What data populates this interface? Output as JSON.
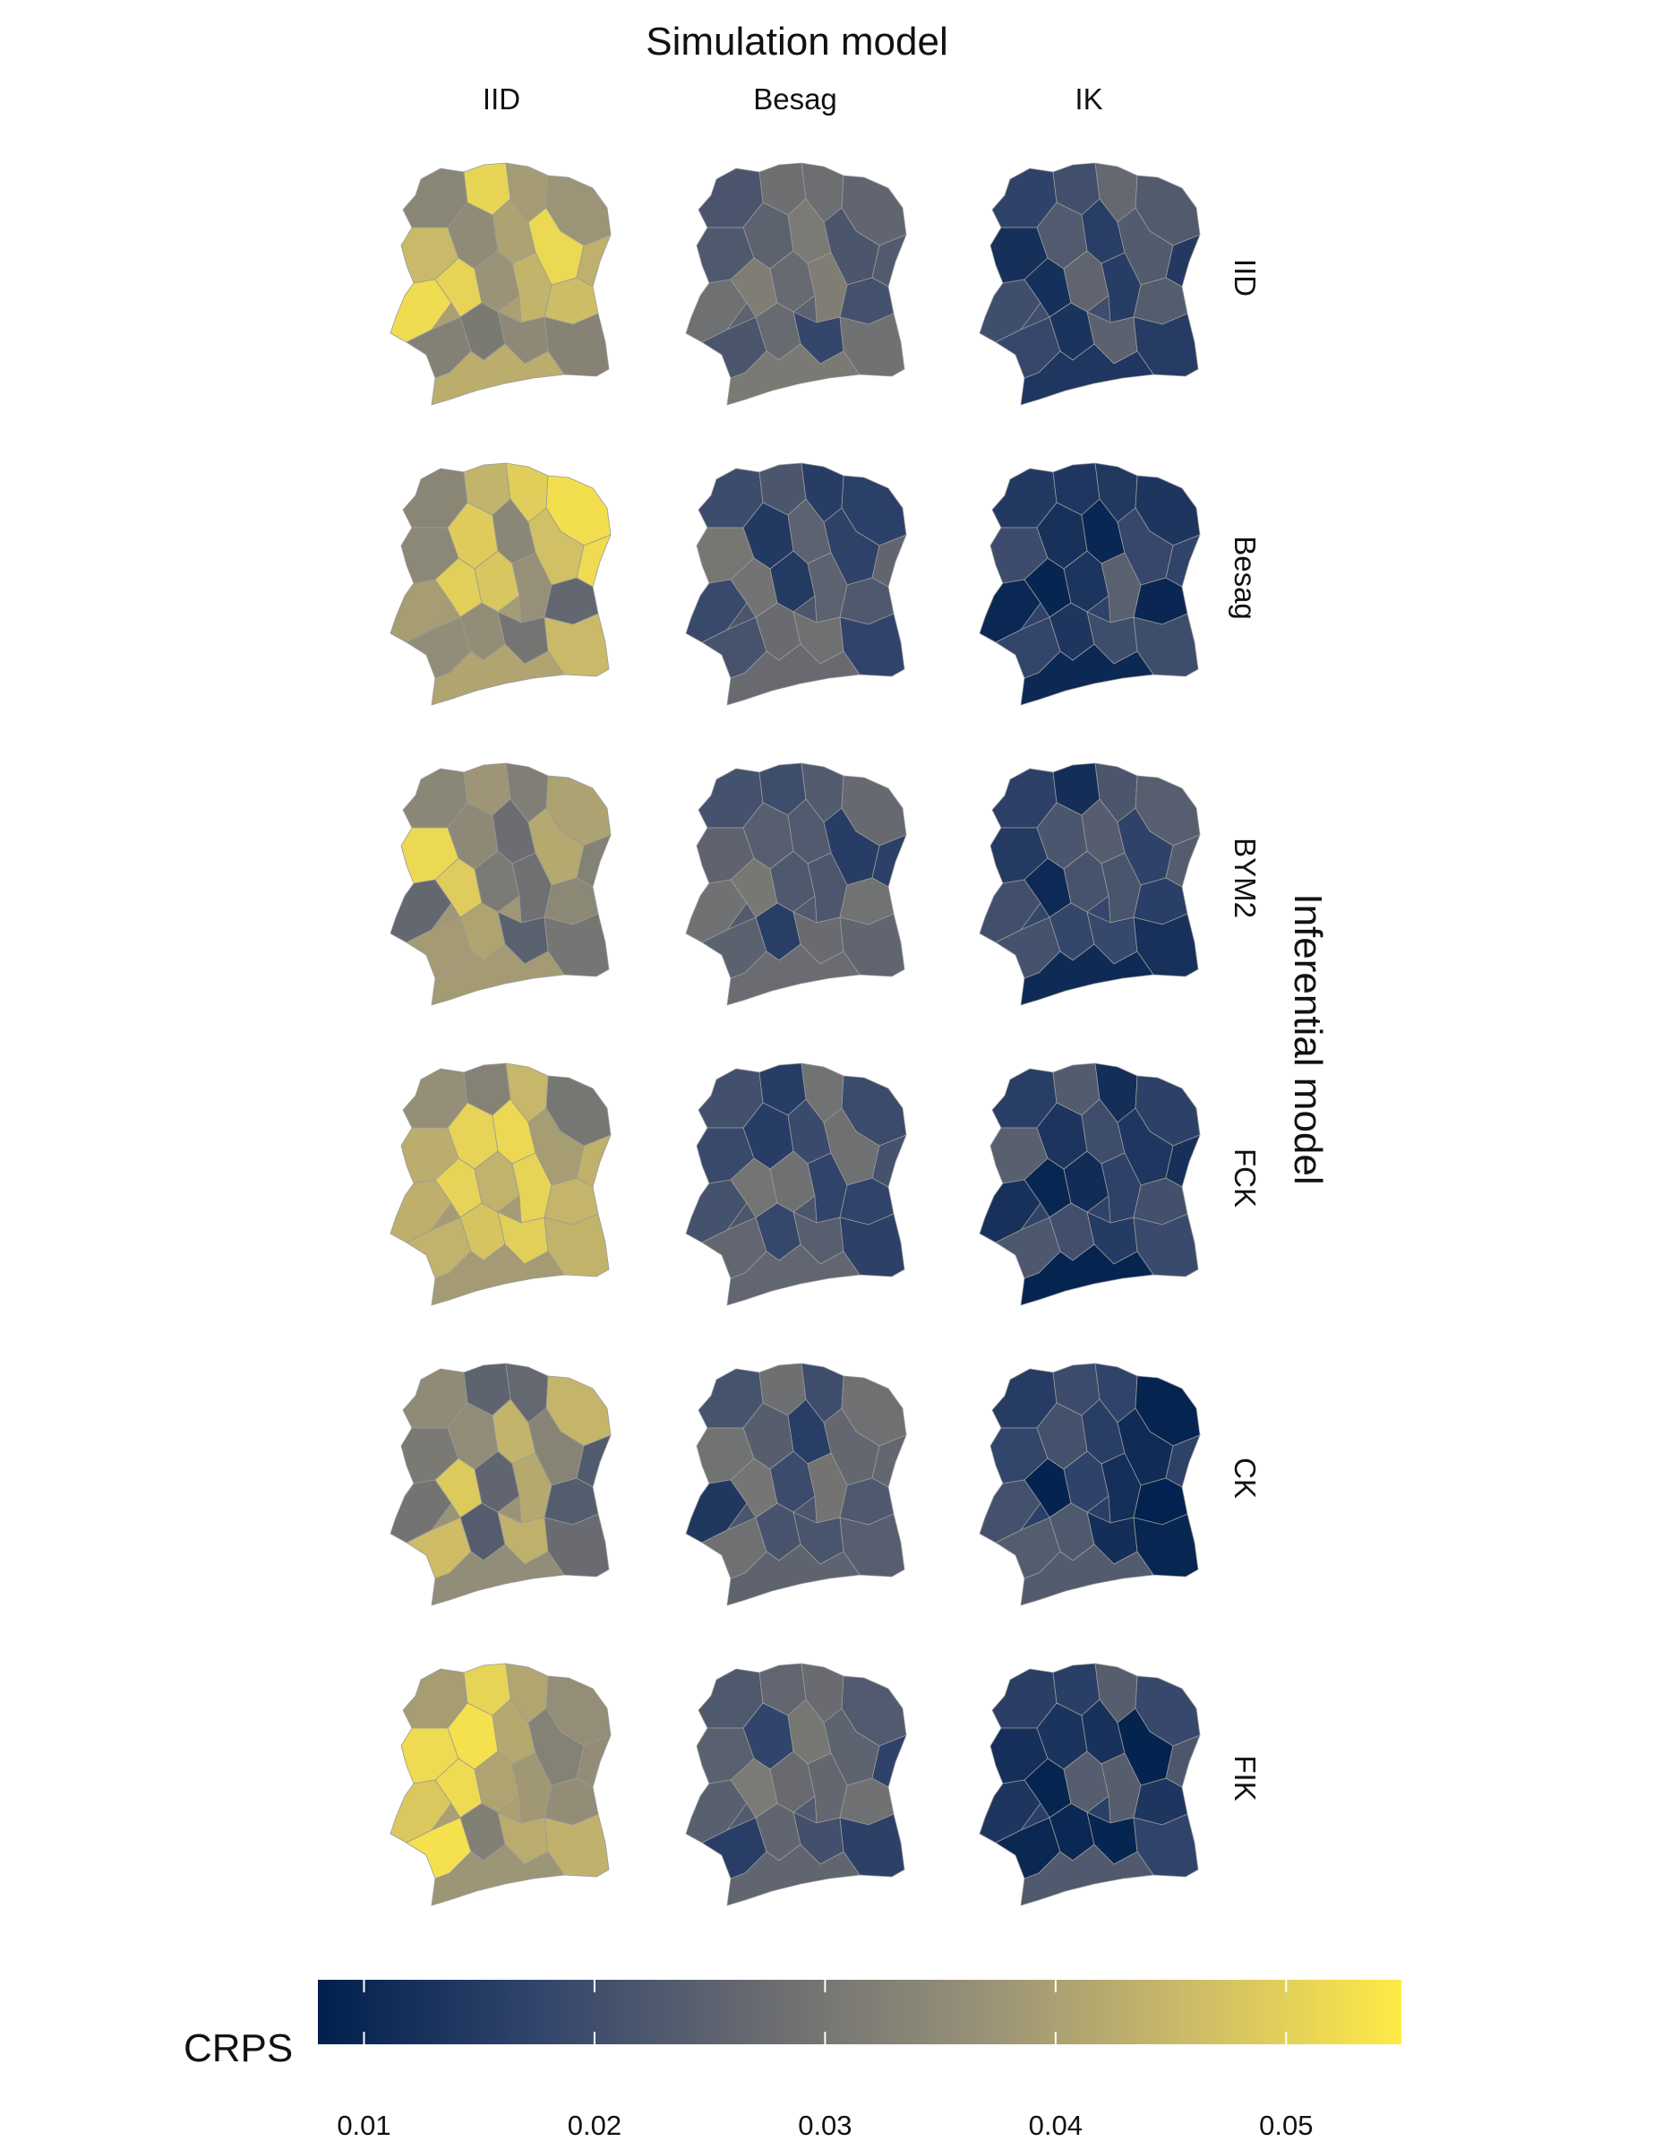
{
  "header": {
    "title": "Simulation model",
    "columns": [
      "IID",
      "Besag",
      "IK"
    ]
  },
  "side": {
    "title": "Inferential model",
    "rows": [
      "IID",
      "Besag",
      "BYM2",
      "FCK",
      "CK",
      "FIK"
    ]
  },
  "legend": {
    "title": "CRPS",
    "min": 0.008,
    "max": 0.055,
    "ticks": [
      0.01,
      0.02,
      0.03,
      0.04,
      0.05
    ],
    "tick_labels": [
      "0.01",
      "0.02",
      "0.03",
      "0.04",
      "0.05"
    ],
    "colors": [
      "#00204d",
      "#31446b",
      "#666970",
      "#958f78",
      "#cbba69",
      "#ffea46"
    ]
  },
  "chart_data": {
    "type": "heatmap",
    "description_of_values": "approximate mean CRPS level of the region-level map in each panel",
    "x_categories": [
      "IID",
      "Besag",
      "IK"
    ],
    "y_categories": [
      "IID",
      "Besag",
      "BYM2",
      "FCK",
      "CK",
      "FIK"
    ],
    "values": [
      [
        0.04,
        0.025,
        0.02
      ],
      [
        0.039,
        0.022,
        0.017
      ],
      [
        0.038,
        0.023,
        0.018
      ],
      [
        0.039,
        0.022,
        0.017
      ],
      [
        0.037,
        0.022,
        0.016
      ],
      [
        0.04,
        0.023,
        0.016
      ]
    ],
    "xlabel": "Simulation model",
    "ylabel": "Inferential model",
    "legend_title": "CRPS",
    "colorbar_range": [
      0.008,
      0.055
    ]
  }
}
